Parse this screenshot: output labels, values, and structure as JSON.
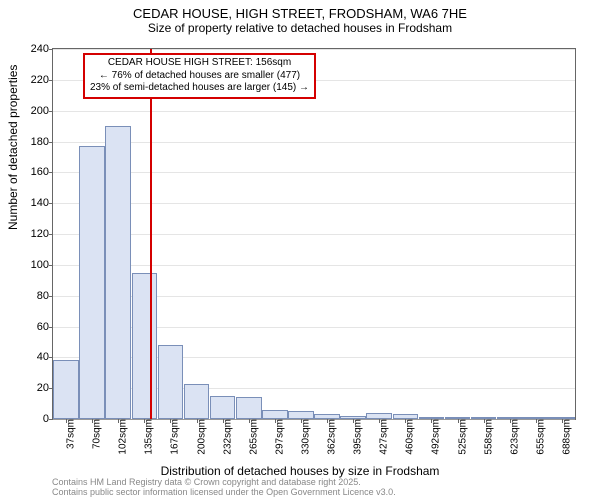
{
  "title": "CEDAR HOUSE, HIGH STREET, FRODSHAM, WA6 7HE",
  "subtitle": "Size of property relative to detached houses in Frodsham",
  "ylabel": "Number of detached properties",
  "xlabel": "Distribution of detached houses by size in Frodsham",
  "footer_line1": "Contains HM Land Registry data © Crown copyright and database right 2025.",
  "footer_line2": "Contains public sector information licensed under the Open Government Licence v3.0.",
  "chart": {
    "type": "histogram",
    "bar_fill": "#dbe3f3",
    "bar_border": "#7a8fb8",
    "bg": "#ffffff",
    "border_color": "#666666",
    "grid_color": "#cccccc",
    "ylim": [
      0,
      240
    ],
    "ytick_step": 20,
    "yticks": [
      0,
      20,
      40,
      60,
      80,
      100,
      120,
      140,
      160,
      180,
      200,
      220,
      240
    ],
    "xticks": [
      "37sqm",
      "70sqm",
      "102sqm",
      "135sqm",
      "167sqm",
      "200sqm",
      "232sqm",
      "265sqm",
      "297sqm",
      "330sqm",
      "362sqm",
      "395sqm",
      "427sqm",
      "460sqm",
      "492sqm",
      "525sqm",
      "558sqm",
      "623sqm",
      "655sqm",
      "688sqm"
    ],
    "bar_values": [
      38,
      177,
      190,
      95,
      48,
      23,
      15,
      14,
      6,
      5,
      3,
      2,
      4,
      3,
      1,
      1,
      1,
      1,
      1,
      1
    ],
    "reference_line": {
      "position": 3.7,
      "color": "#d40000"
    },
    "annotation": {
      "line1": "CEDAR HOUSE HIGH STREET: 156sqm",
      "line2": "← 76% of detached houses are smaller (477)",
      "line3": "23% of semi-detached houses are larger (145) →",
      "border_color": "#d40000",
      "bg_color": "#ffffff"
    }
  }
}
